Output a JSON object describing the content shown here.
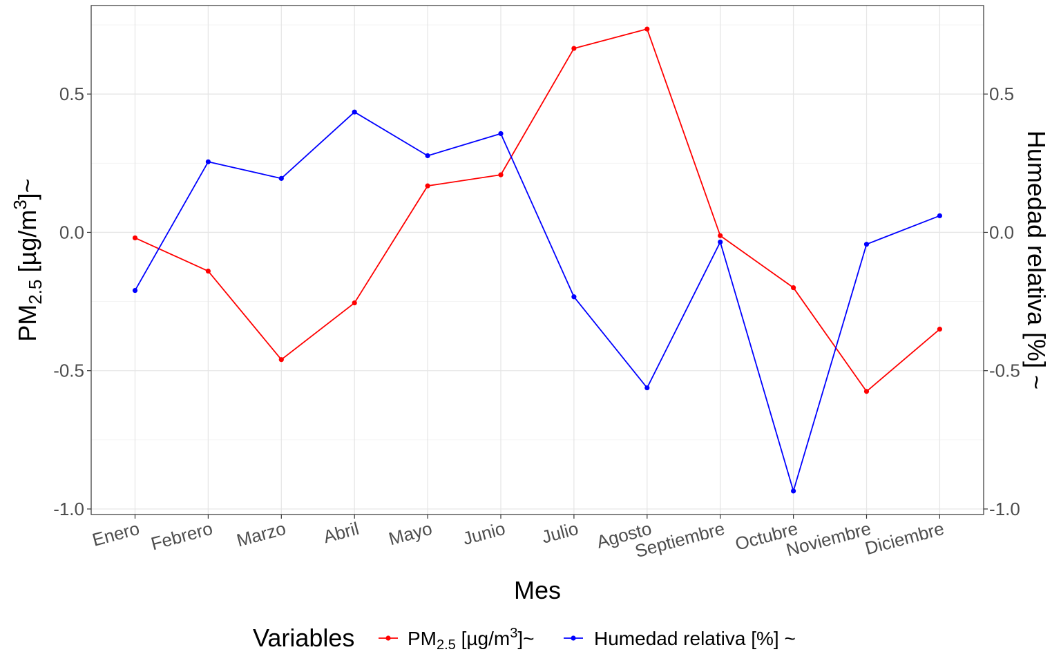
{
  "chart_data": {
    "type": "line",
    "xlabel": "Mes",
    "ylabel_left": {
      "base": "PM",
      "sub": "2.5",
      "mid": " [µg/m",
      "sup": "3",
      "end": "]~"
    },
    "ylabel_right": "Humedad relativa [%] ~",
    "categories": [
      "Enero",
      "Febrero",
      "Marzo",
      "Abril",
      "Mayo",
      "Junio",
      "Julio",
      "Agosto",
      "Septiembre",
      "Octubre",
      "Noviembre",
      "Diciembre"
    ],
    "ylim": [
      -1.02,
      0.82
    ],
    "yticks": [
      -1.0,
      -0.5,
      0.0,
      0.5
    ],
    "ytick_labels": [
      "-1.0",
      "-0.5",
      "0.0",
      "0.5"
    ],
    "grid": true,
    "legend": {
      "title": "Variables",
      "position": "bottom",
      "items": [
        {
          "base": "PM",
          "sub": "2.5",
          "mid": " [µg/m",
          "sup": "3",
          "end": "]~"
        },
        {
          "text": "Humedad relativa [%] ~"
        }
      ]
    },
    "series": [
      {
        "name": "PM2.5 [µg/m3]~",
        "color": "#ff0000",
        "values": [
          -0.02,
          -0.14,
          -0.46,
          -0.255,
          0.168,
          0.208,
          0.665,
          0.735,
          -0.012,
          -0.2,
          -0.575,
          -0.35
        ]
      },
      {
        "name": "Humedad relativa [%] ~",
        "color": "#0000ff",
        "values": [
          -0.21,
          0.255,
          0.195,
          0.435,
          0.277,
          0.357,
          -0.233,
          -0.562,
          -0.035,
          -0.935,
          -0.043,
          0.06
        ]
      }
    ]
  }
}
